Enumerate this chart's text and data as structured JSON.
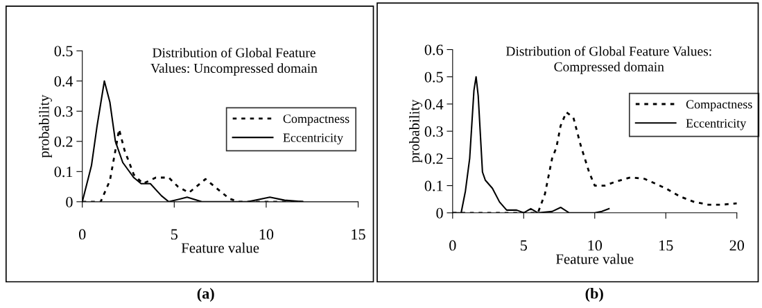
{
  "chart_data": [
    {
      "type": "line",
      "title": "Distribution of Global Feature\nValues: Uncompressed domain",
      "xlabel": "Feature value",
      "ylabel": "probability",
      "xlim": [
        0,
        15
      ],
      "xticks": [
        0,
        5,
        10,
        15
      ],
      "ylim": [
        0,
        0.5
      ],
      "yticks": [
        0,
        0.1,
        0.2,
        0.3,
        0.4,
        0.5
      ],
      "grid": false,
      "legend": "right",
      "annotations": [
        "(a)"
      ],
      "series": [
        {
          "name": "Compactness",
          "color": "#000000",
          "line_style": "dotted",
          "x": [
            0,
            1,
            1.5,
            1.8,
            2,
            2.3,
            2.8,
            3.3,
            4,
            4.7,
            5.2,
            5.8,
            6.7,
            7.2,
            8,
            8.5,
            10,
            12
          ],
          "values": [
            0,
            0,
            0.07,
            0.17,
            0.24,
            0.17,
            0.09,
            0.06,
            0.08,
            0.08,
            0.05,
            0.03,
            0.075,
            0.05,
            0.01,
            0,
            0,
            0
          ]
        },
        {
          "name": "Eccentricity",
          "color": "#000000",
          "line_style": "solid",
          "x": [
            0,
            0.5,
            0.8,
            1.2,
            1.5,
            1.8,
            2.2,
            2.8,
            3.2,
            3.7,
            4.3,
            4.7,
            5.7,
            6.5,
            9,
            10.2,
            11,
            12
          ],
          "values": [
            0,
            0.12,
            0.25,
            0.4,
            0.33,
            0.2,
            0.13,
            0.08,
            0.06,
            0.06,
            0.02,
            0,
            0.015,
            0,
            0,
            0.015,
            0.005,
            0
          ]
        }
      ]
    },
    {
      "type": "line",
      "title": "Distribution of Global Feature Values:\nCompressed domain",
      "xlabel": "Feature value",
      "ylabel": "probability",
      "xlim": [
        0,
        20
      ],
      "xticks": [
        0,
        5,
        10,
        15,
        20
      ],
      "ylim": [
        0,
        0.6
      ],
      "yticks": [
        0,
        0.1,
        0.2,
        0.3,
        0.4,
        0.5,
        0.6
      ],
      "grid": false,
      "legend": "right",
      "annotations": [
        "(b)"
      ],
      "series": [
        {
          "name": "Compactness",
          "color": "#000000",
          "line_style": "dotted",
          "x": [
            0,
            6,
            6.5,
            7,
            7.3,
            7.6,
            8,
            8.5,
            9,
            9.6,
            10,
            10.7,
            11.5,
            12.5,
            13.5,
            15,
            16,
            17,
            18,
            19,
            20
          ],
          "values": [
            0,
            0,
            0.07,
            0.2,
            0.24,
            0.32,
            0.37,
            0.35,
            0.25,
            0.15,
            0.1,
            0.1,
            0.115,
            0.13,
            0.125,
            0.09,
            0.06,
            0.04,
            0.03,
            0.03,
            0.035
          ]
        },
        {
          "name": "Eccentricity",
          "color": "#000000",
          "line_style": "solid",
          "x": [
            0,
            0.6,
            0.9,
            1.2,
            1.5,
            1.65,
            1.8,
            2.1,
            2.3,
            2.8,
            3.3,
            3.8,
            4.5,
            5,
            5.5,
            6,
            7,
            7.6,
            8.2,
            10,
            10.5,
            11
          ],
          "values": [
            0,
            0,
            0.08,
            0.2,
            0.45,
            0.5,
            0.43,
            0.15,
            0.12,
            0.09,
            0.04,
            0.01,
            0.01,
            0,
            0.015,
            0,
            0.005,
            0.02,
            0,
            0,
            0.005,
            0.015
          ]
        }
      ]
    }
  ]
}
